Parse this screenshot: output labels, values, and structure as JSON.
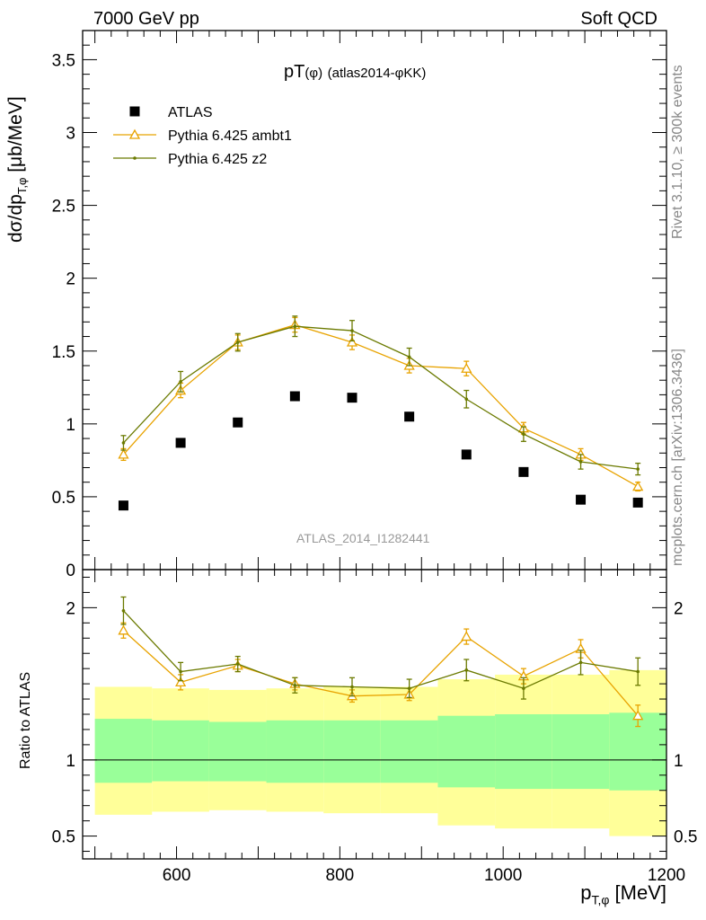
{
  "header": {
    "left": "7000 GeV pp",
    "right": "Soft QCD"
  },
  "side_labels": {
    "rivet": "Rivet 3.1.10, ≥ 300k events",
    "mcplots": "mcplots.cern.ch [arXiv:1306.3436]"
  },
  "colors": {
    "atlas": "#000000",
    "ambt1": "#e8a300",
    "z2": "#6b7a00",
    "band_inner": "#99ff99",
    "band_outer": "#ffff99"
  },
  "chart_data": [
    {
      "type": "scatter",
      "title": "pT(φ) (atlas2014-φKK)",
      "ylabel": "dσ/dp_T,φ [μb/MeV]",
      "watermark": "ATLAS_2014_I1282441",
      "xlim": [
        485,
        1200
      ],
      "ylim": [
        0,
        3.7
      ],
      "yticks": [
        0,
        0.5,
        1,
        1.5,
        2,
        2.5,
        3,
        3.5
      ],
      "ytick_labels": [
        "0",
        "0.5",
        "1",
        "1.5",
        "2",
        "2.5",
        "3",
        "3.5"
      ],
      "legend_position": "top-left",
      "x": [
        535,
        605,
        675,
        745,
        815,
        885,
        955,
        1025,
        1095,
        1165
      ],
      "series": [
        {
          "name": "ATLAS",
          "style": "marker",
          "values": [
            0.44,
            0.87,
            1.01,
            1.19,
            1.18,
            1.05,
            0.79,
            0.67,
            0.48,
            0.46
          ]
        },
        {
          "name": "Pythia 6.425 ambt1",
          "style": "line-triangle",
          "values": [
            0.79,
            1.23,
            1.56,
            1.68,
            1.56,
            1.4,
            1.38,
            0.97,
            0.79,
            0.57
          ],
          "errors": [
            0.04,
            0.05,
            0.05,
            0.05,
            0.05,
            0.05,
            0.05,
            0.04,
            0.04,
            0.03
          ]
        },
        {
          "name": "Pythia 6.425 z2",
          "style": "line-dot",
          "values": [
            0.87,
            1.29,
            1.56,
            1.67,
            1.64,
            1.46,
            1.17,
            0.93,
            0.74,
            0.69
          ],
          "errors": [
            0.05,
            0.07,
            0.06,
            0.07,
            0.07,
            0.06,
            0.06,
            0.05,
            0.05,
            0.04
          ]
        }
      ]
    },
    {
      "type": "scatter",
      "ylabel": "Ratio to ATLAS",
      "xlabel": "p_T,φ [MeV]",
      "xlim": [
        485,
        1200
      ],
      "ylim": [
        0.35,
        2.25
      ],
      "xticks": [
        600,
        800,
        1000,
        1200
      ],
      "xtick_labels": [
        "600",
        "800",
        "1000",
        "1200"
      ],
      "yticks": [
        0.5,
        1,
        2
      ],
      "ytick_labels": [
        "0.5",
        "1",
        "2"
      ],
      "x": [
        535,
        605,
        675,
        745,
        815,
        885,
        955,
        1025,
        1095,
        1165
      ],
      "bands": {
        "bin_edges": [
          500,
          570,
          640,
          710,
          780,
          850,
          920,
          990,
          1060,
          1130,
          1200
        ],
        "inner_low": [
          0.85,
          0.86,
          0.86,
          0.85,
          0.85,
          0.85,
          0.82,
          0.81,
          0.81,
          0.8
        ],
        "inner_high": [
          1.27,
          1.26,
          1.25,
          1.26,
          1.26,
          1.26,
          1.29,
          1.3,
          1.3,
          1.31
        ],
        "outer_low": [
          0.64,
          0.66,
          0.67,
          0.66,
          0.65,
          0.65,
          0.57,
          0.55,
          0.55,
          0.5
        ],
        "outer_high": [
          1.48,
          1.47,
          1.46,
          1.47,
          1.48,
          1.48,
          1.53,
          1.56,
          1.56,
          1.59
        ]
      },
      "series": [
        {
          "name": "Pythia 6.425 ambt1",
          "style": "line-triangle",
          "values": [
            1.85,
            1.51,
            1.62,
            1.5,
            1.42,
            1.43,
            1.81,
            1.55,
            1.73,
            1.29
          ],
          "errors": [
            0.05,
            0.05,
            0.04,
            0.04,
            0.04,
            0.04,
            0.05,
            0.05,
            0.06,
            0.07
          ]
        },
        {
          "name": "Pythia 6.425 z2",
          "style": "line-dot",
          "values": [
            1.98,
            1.58,
            1.63,
            1.49,
            1.48,
            1.47,
            1.59,
            1.47,
            1.64,
            1.58
          ],
          "errors": [
            0.09,
            0.06,
            0.05,
            0.05,
            0.06,
            0.06,
            0.07,
            0.07,
            0.08,
            0.09
          ]
        }
      ]
    }
  ]
}
